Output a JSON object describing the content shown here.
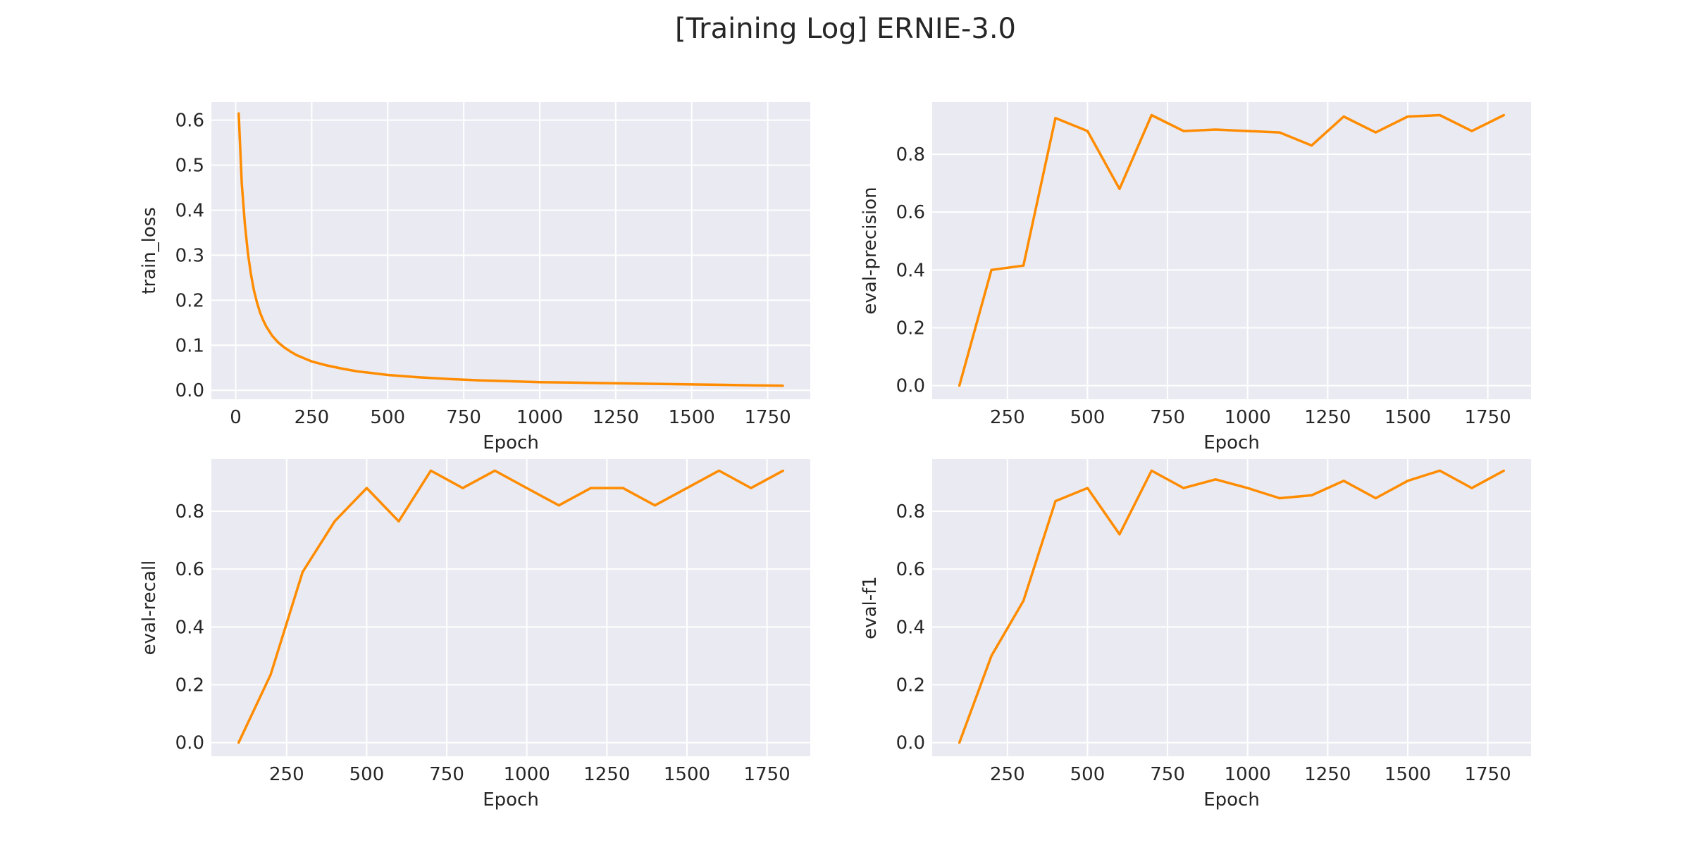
{
  "figure": {
    "title": "[Training Log] ERNIE-3.0",
    "line_color": "#ff8c00",
    "axes_face_color": "#eaeaf2",
    "grid_color": "#ffffff"
  },
  "chart_data": [
    {
      "type": "line",
      "xlabel": "Epoch",
      "ylabel": "train_loss",
      "xlim": [
        -80,
        1890
      ],
      "ylim": [
        -0.02,
        0.64
      ],
      "xticks": [
        0,
        250,
        500,
        750,
        1000,
        1250,
        1500,
        1750
      ],
      "yticks": [
        0.0,
        0.1,
        0.2,
        0.3,
        0.4,
        0.5,
        0.6
      ],
      "grid": true,
      "series": [
        {
          "x": [
            10,
            20,
            30,
            40,
            50,
            60,
            70,
            80,
            90,
            100,
            120,
            140,
            160,
            180,
            200,
            250,
            300,
            350,
            400,
            450,
            500,
            600,
            700,
            800,
            900,
            1000,
            1100,
            1200,
            1300,
            1400,
            1500,
            1600,
            1700,
            1800
          ],
          "values": [
            0.615,
            0.46,
            0.37,
            0.305,
            0.258,
            0.222,
            0.195,
            0.173,
            0.156,
            0.142,
            0.121,
            0.106,
            0.095,
            0.086,
            0.078,
            0.064,
            0.055,
            0.048,
            0.042,
            0.038,
            0.034,
            0.029,
            0.025,
            0.022,
            0.02,
            0.018,
            0.017,
            0.016,
            0.015,
            0.014,
            0.013,
            0.012,
            0.011,
            0.01
          ]
        }
      ]
    },
    {
      "type": "line",
      "xlabel": "Epoch",
      "ylabel": "eval-precision",
      "xlim": [
        15,
        1885
      ],
      "ylim": [
        -0.047,
        0.98
      ],
      "xticks": [
        250,
        500,
        750,
        1000,
        1250,
        1500,
        1750
      ],
      "yticks": [
        0.0,
        0.2,
        0.4,
        0.6,
        0.8
      ],
      "grid": true,
      "series": [
        {
          "x": [
            100,
            200,
            300,
            400,
            500,
            600,
            700,
            800,
            900,
            1000,
            1100,
            1200,
            1300,
            1400,
            1500,
            1600,
            1700,
            1800
          ],
          "values": [
            0.0,
            0.4,
            0.415,
            0.925,
            0.88,
            0.68,
            0.935,
            0.88,
            0.885,
            0.88,
            0.875,
            0.83,
            0.93,
            0.875,
            0.93,
            0.935,
            0.88,
            0.935
          ]
        }
      ]
    },
    {
      "type": "line",
      "xlabel": "Epoch",
      "ylabel": "eval-recall",
      "xlim": [
        15,
        1885
      ],
      "ylim": [
        -0.047,
        0.98
      ],
      "xticks": [
        250,
        500,
        750,
        1000,
        1250,
        1500,
        1750
      ],
      "yticks": [
        0.0,
        0.2,
        0.4,
        0.6,
        0.8
      ],
      "grid": true,
      "series": [
        {
          "x": [
            100,
            200,
            300,
            400,
            500,
            600,
            700,
            800,
            900,
            1000,
            1100,
            1200,
            1300,
            1400,
            1500,
            1600,
            1700,
            1800
          ],
          "values": [
            0.0,
            0.235,
            0.59,
            0.765,
            0.88,
            0.765,
            0.94,
            0.88,
            0.94,
            0.88,
            0.82,
            0.88,
            0.88,
            0.82,
            0.88,
            0.94,
            0.88,
            0.94
          ]
        }
      ]
    },
    {
      "type": "line",
      "xlabel": "Epoch",
      "ylabel": "eval-f1",
      "xlim": [
        15,
        1885
      ],
      "ylim": [
        -0.047,
        0.98
      ],
      "xticks": [
        250,
        500,
        750,
        1000,
        1250,
        1500,
        1750
      ],
      "yticks": [
        0.0,
        0.2,
        0.4,
        0.6,
        0.8
      ],
      "grid": true,
      "series": [
        {
          "x": [
            100,
            200,
            300,
            400,
            500,
            600,
            700,
            800,
            900,
            1000,
            1100,
            1200,
            1300,
            1400,
            1500,
            1600,
            1700,
            1800
          ],
          "values": [
            0.0,
            0.3,
            0.49,
            0.835,
            0.88,
            0.72,
            0.94,
            0.88,
            0.91,
            0.88,
            0.845,
            0.855,
            0.905,
            0.845,
            0.905,
            0.94,
            0.88,
            0.94
          ]
        }
      ]
    }
  ]
}
